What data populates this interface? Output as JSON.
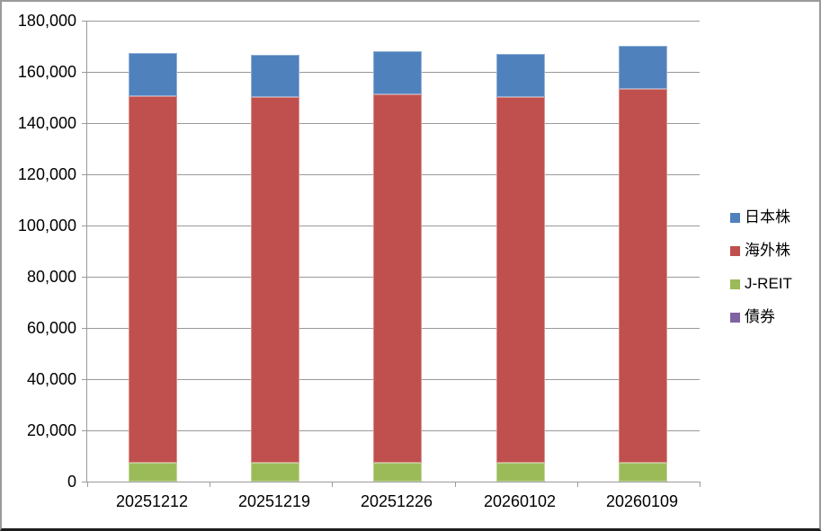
{
  "chart_data": {
    "type": "bar",
    "stacked": true,
    "title": "",
    "xlabel": "",
    "ylabel": "",
    "categories": [
      "20251212",
      "20251219",
      "20251226",
      "20260102",
      "20260109"
    ],
    "series": [
      {
        "key": "japan-stocks",
        "name": "日本株",
        "color": "#4F81BD",
        "values": [
          16900,
          16500,
          16900,
          16800,
          16900
        ]
      },
      {
        "key": "overseas-stocks",
        "name": "海外株",
        "color": "#C0504D",
        "values": [
          143100,
          142900,
          143700,
          142800,
          145800
        ]
      },
      {
        "key": "j-reit",
        "name": "J-REIT",
        "color": "#9BBB59",
        "values": [
          7400,
          7300,
          7500,
          7400,
          7500
        ]
      },
      {
        "key": "bonds",
        "name": "債券",
        "color": "#8064A2",
        "values": [
          0,
          0,
          0,
          0,
          0
        ]
      }
    ],
    "stack_order_bottom_to_top": [
      "bonds",
      "j-reit",
      "overseas-stocks",
      "japan-stocks"
    ],
    "totals": [
      167400,
      166700,
      168100,
      167000,
      170200
    ],
    "ylim": [
      0,
      180000
    ],
    "ytick_step": 20000,
    "ytick_labels_top_to_bottom": [
      "180,000",
      "160,000",
      "140,000",
      "120,000",
      "100,000",
      "80,000",
      "60,000",
      "40,000",
      "20,000",
      "0"
    ],
    "grid": true,
    "legend_position": "right",
    "legend_items": [
      {
        "key": "japan-stocks",
        "label": "日本株",
        "color": "#4F81BD"
      },
      {
        "key": "overseas-stocks",
        "label": "海外株",
        "color": "#C0504D"
      },
      {
        "key": "j-reit",
        "label": "J-REIT",
        "color": "#9BBB59"
      },
      {
        "key": "bonds",
        "label": "債券",
        "color": "#8064A2"
      }
    ]
  },
  "colors": {
    "plot_background": "#FFFFFF",
    "gridline": "#9A9A9A",
    "axis": "#9A9A9A",
    "text": "#000000",
    "outer_border": "#9A9A9A",
    "outer_border_bottom": "#1E1E1E"
  }
}
